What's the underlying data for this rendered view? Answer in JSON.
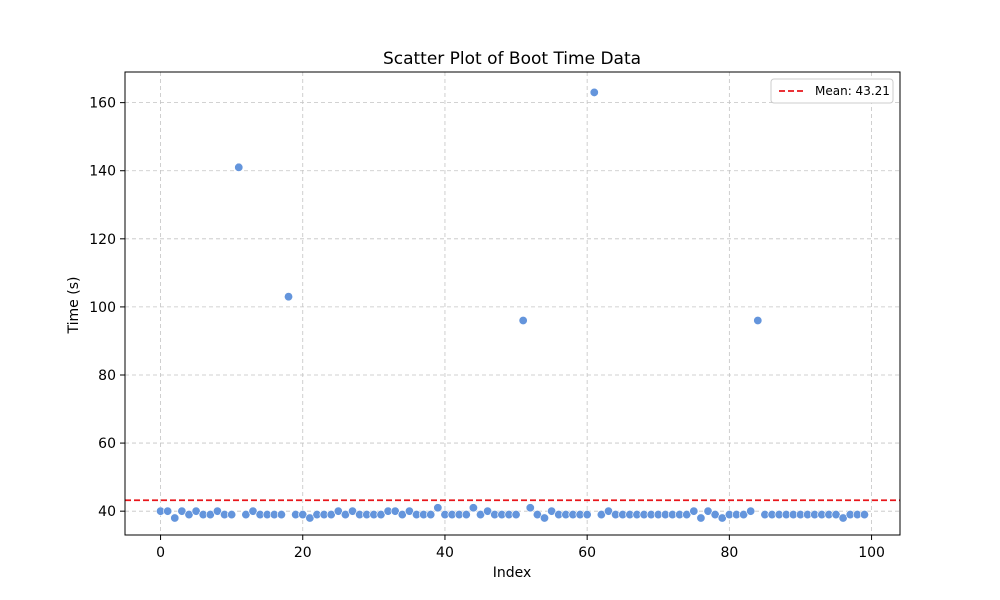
{
  "chart_data": {
    "type": "scatter",
    "title": "Scatter Plot of Boot Time Data",
    "xlabel": "Index",
    "ylabel": "Time (s)",
    "xlim": [
      -5,
      104
    ],
    "ylim": [
      33,
      169
    ],
    "xticks": [
      0,
      20,
      40,
      60,
      80,
      100
    ],
    "yticks": [
      40,
      60,
      80,
      100,
      120,
      140,
      160
    ],
    "grid": true,
    "legend_position": "top-right",
    "point_color": "#6495dc",
    "mean_color": "#e8161b",
    "mean": 43.21,
    "mean_label": "Mean: 43.21",
    "x": [
      0,
      1,
      2,
      3,
      4,
      5,
      6,
      7,
      8,
      9,
      10,
      11,
      12,
      13,
      14,
      15,
      16,
      17,
      18,
      19,
      20,
      21,
      22,
      23,
      24,
      25,
      26,
      27,
      28,
      29,
      30,
      31,
      32,
      33,
      34,
      35,
      36,
      37,
      38,
      39,
      40,
      41,
      42,
      43,
      44,
      45,
      46,
      47,
      48,
      49,
      50,
      51,
      52,
      53,
      54,
      55,
      56,
      57,
      58,
      59,
      60,
      61,
      62,
      63,
      64,
      65,
      66,
      67,
      68,
      69,
      70,
      71,
      72,
      73,
      74,
      75,
      76,
      77,
      78,
      79,
      80,
      81,
      82,
      83,
      84,
      85,
      86,
      87,
      88,
      89,
      90,
      91,
      92,
      93,
      94,
      95,
      96,
      97,
      98,
      99
    ],
    "y": [
      40,
      40,
      38,
      40,
      39,
      40,
      39,
      39,
      40,
      39,
      39,
      141,
      39,
      40,
      39,
      39,
      39,
      39,
      103,
      39,
      39,
      38,
      39,
      39,
      39,
      40,
      39,
      40,
      39,
      39,
      39,
      39,
      40,
      40,
      39,
      40,
      39,
      39,
      39,
      41,
      39,
      39,
      39,
      39,
      41,
      39,
      40,
      39,
      39,
      39,
      39,
      96,
      41,
      39,
      38,
      40,
      39,
      39,
      39,
      39,
      39,
      163,
      39,
      40,
      39,
      39,
      39,
      39,
      39,
      39,
      39,
      39,
      39,
      39,
      39,
      40,
      38,
      40,
      39,
      38,
      39,
      39,
      39,
      40,
      96,
      39,
      39,
      39,
      39,
      39,
      39,
      39,
      39,
      39,
      39,
      39,
      38,
      39,
      39,
      39
    ]
  }
}
